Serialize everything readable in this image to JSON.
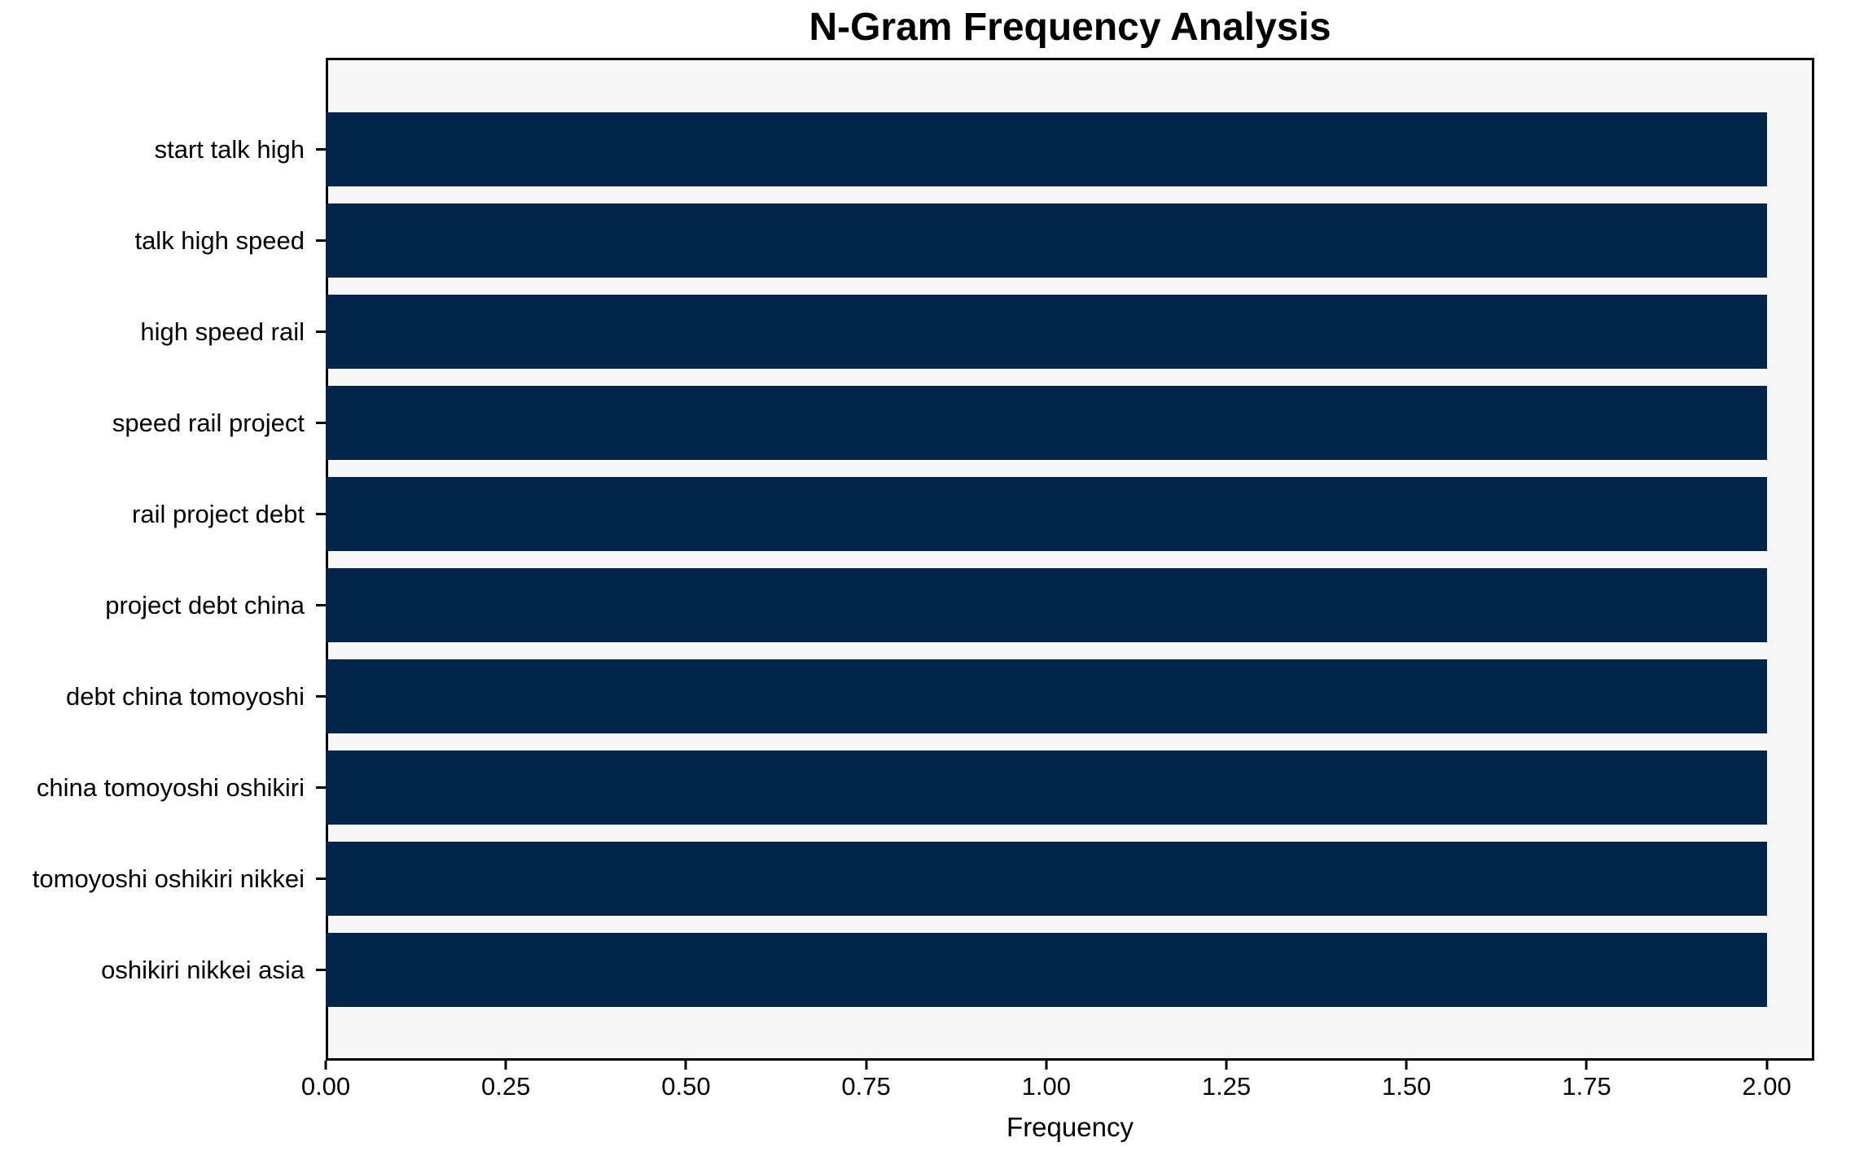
{
  "figure": {
    "background": "#ffffff",
    "plot_background": "#f7f7f7",
    "spine_color": "#000000",
    "text_color": "#000000"
  },
  "chart_data": {
    "type": "bar",
    "orientation": "horizontal",
    "title": "N-Gram Frequency Analysis",
    "xlabel": "Frequency",
    "ylabel": "",
    "categories": [
      "start talk high",
      "talk high speed",
      "high speed rail",
      "speed rail project",
      "rail project debt",
      "project debt china",
      "debt china tomoyoshi",
      "china tomoyoshi oshikiri",
      "tomoyoshi oshikiri nikkei",
      "oshikiri nikkei asia"
    ],
    "values": [
      2,
      2,
      2,
      2,
      2,
      2,
      2,
      2,
      2,
      2
    ],
    "bar_color": "#03254c",
    "xlim": [
      0,
      2.066
    ],
    "xticks": [
      {
        "value": 0.0,
        "label": "0.00"
      },
      {
        "value": 0.25,
        "label": "0.25"
      },
      {
        "value": 0.5,
        "label": "0.50"
      },
      {
        "value": 0.75,
        "label": "0.75"
      },
      {
        "value": 1.0,
        "label": "1.00"
      },
      {
        "value": 1.25,
        "label": "1.25"
      },
      {
        "value": 1.5,
        "label": "1.50"
      },
      {
        "value": 1.75,
        "label": "1.75"
      },
      {
        "value": 2.0,
        "label": "2.00"
      }
    ],
    "grid": false,
    "legend": false
  }
}
